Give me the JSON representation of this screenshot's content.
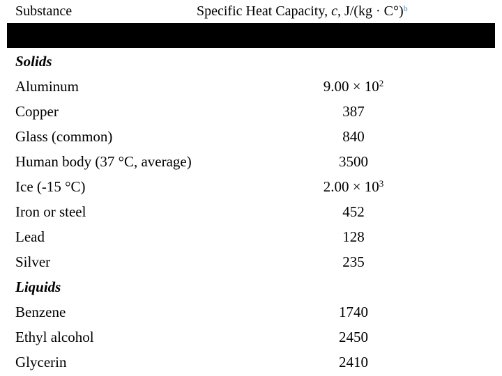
{
  "header": {
    "substance": "Substance",
    "capacity": {
      "prefix": "Specific Heat Capacity, ",
      "symbol": "c",
      "unit": ", J/(kg · C°)",
      "note": "b"
    }
  },
  "sections": [
    {
      "title": "Solids",
      "rows": [
        {
          "substance": "Aluminum",
          "value": "9.00 × 10",
          "exponent": "2"
        },
        {
          "substance": "Copper",
          "value": "387"
        },
        {
          "substance": "Glass (common)",
          "value": "840"
        },
        {
          "substance": "Human body (37 °C, average)",
          "value": "3500"
        },
        {
          "substance": "Ice (-15 °C)",
          "value": "2.00 × 10",
          "exponent": "3"
        },
        {
          "substance": "Iron or steel",
          "value": "452"
        },
        {
          "substance": "Lead",
          "value": "128"
        },
        {
          "substance": "Silver",
          "value": "235"
        }
      ]
    },
    {
      "title": "Liquids",
      "rows": [
        {
          "substance": "Benzene",
          "value": "1740"
        },
        {
          "substance": "Ethyl alcohol",
          "value": "2450"
        },
        {
          "substance": "Glycerin",
          "value": "2410"
        }
      ]
    }
  ]
}
